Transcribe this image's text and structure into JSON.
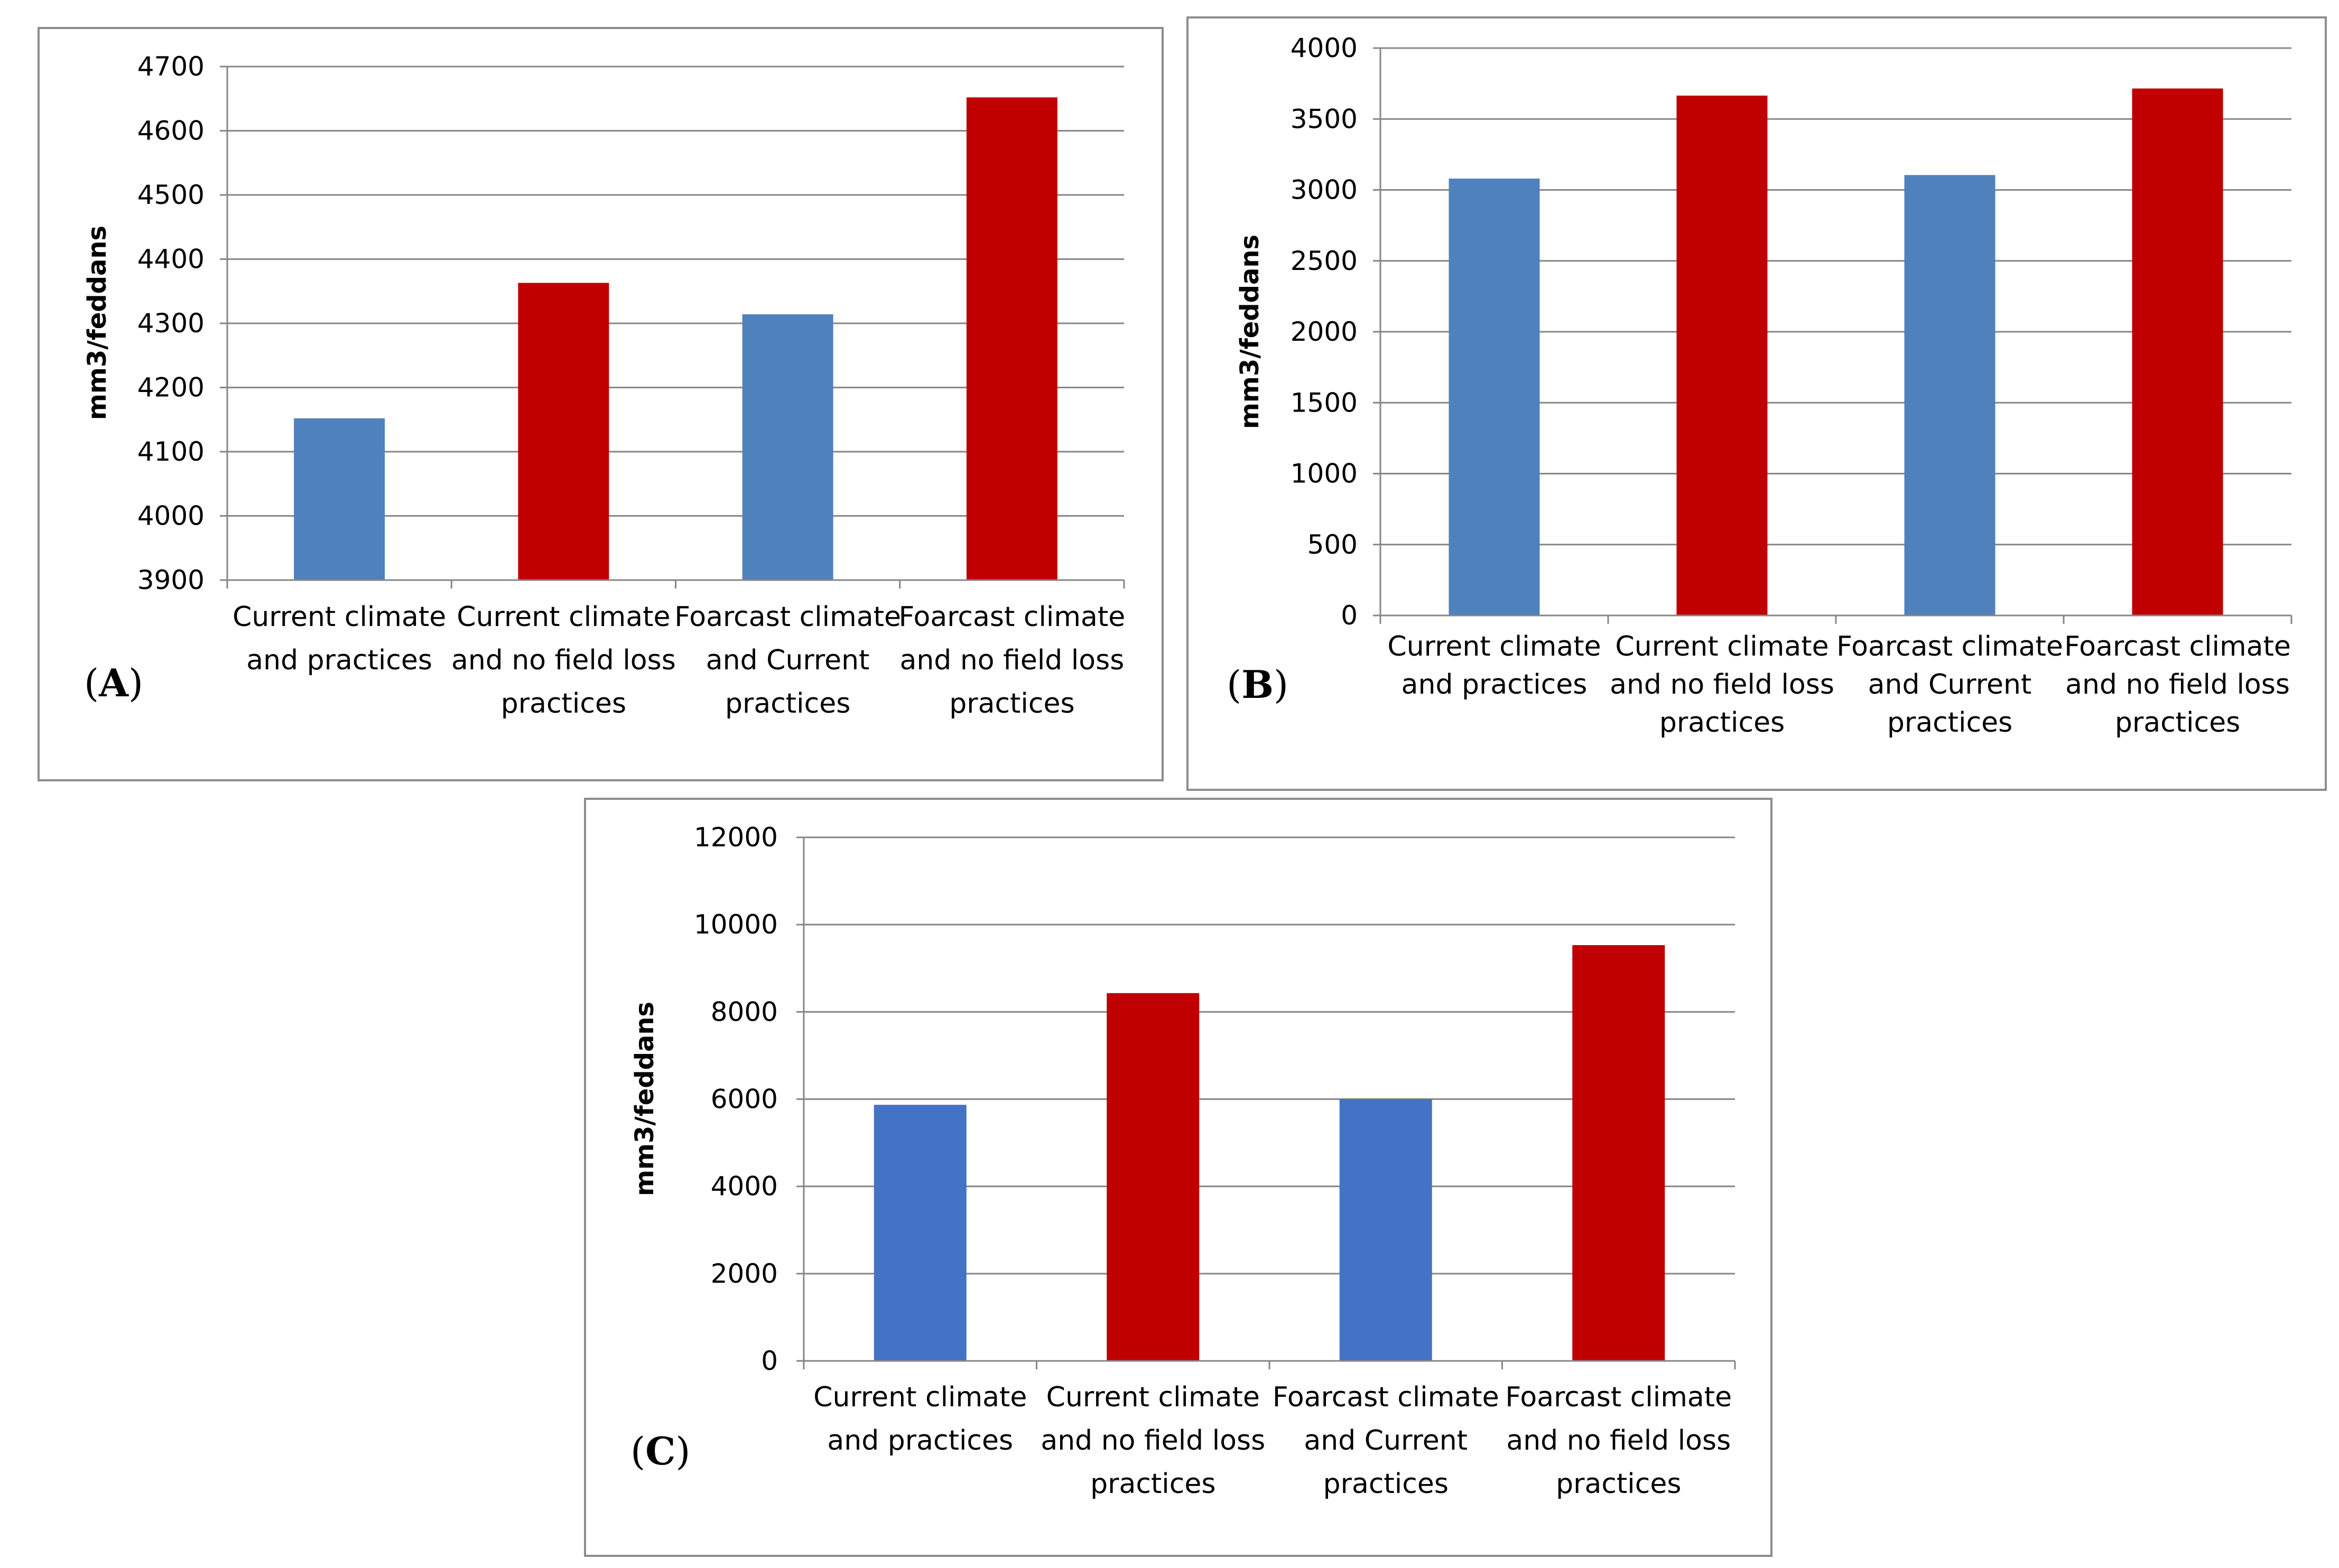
{
  "chart_data": [
    {
      "panel": "A",
      "type": "bar",
      "categories": [
        [
          "Current climate",
          "and  practices"
        ],
        [
          "Current climate",
          "and no field loss",
          "practices"
        ],
        [
          "Foarcast climate",
          "and Current",
          "practices"
        ],
        [
          "Foarcast climate",
          "and no field loss",
          "practices"
        ]
      ],
      "values": [
        4152,
        4363,
        4314,
        4652
      ],
      "colors": [
        "#4f81bd",
        "#c00000",
        "#4f81bd",
        "#c00000"
      ],
      "ylabel": "mm3/feddans",
      "ylim": [
        3900,
        4700
      ],
      "yticks": [
        3900,
        4000,
        4100,
        4200,
        4300,
        4400,
        4500,
        4600,
        4700
      ],
      "grid": true,
      "label": "A"
    },
    {
      "panel": "B",
      "type": "bar",
      "categories": [
        [
          "Current climate",
          "and  practices"
        ],
        [
          "Current climate",
          "and no field loss",
          "practices"
        ],
        [
          "Foarcast climate",
          "and Current",
          "practices"
        ],
        [
          "Foarcast climate",
          "and no field loss",
          "practices"
        ]
      ],
      "values": [
        3080,
        3665,
        3105,
        3715
      ],
      "colors": [
        "#4f81bd",
        "#c00000",
        "#4f81bd",
        "#c00000"
      ],
      "ylabel": "mm3/feddans",
      "ylim": [
        0,
        4000
      ],
      "yticks": [
        0,
        500,
        1000,
        1500,
        2000,
        2500,
        3000,
        3500,
        4000
      ],
      "grid": true,
      "label": "B"
    },
    {
      "panel": "C",
      "type": "bar",
      "categories": [
        [
          "Current climate",
          "and  practices"
        ],
        [
          "Current climate",
          "and no field loss",
          "practices"
        ],
        [
          "Foarcast climate",
          "and Current",
          "practices"
        ],
        [
          "Foarcast climate",
          "and no field loss",
          "practices"
        ]
      ],
      "values": [
        5870,
        8430,
        6000,
        9530
      ],
      "colors": [
        "#4472c4",
        "#c00000",
        "#4472c4",
        "#c00000"
      ],
      "ylabel": "mm3/feddans",
      "ylim": [
        0,
        12000
      ],
      "yticks": [
        0,
        2000,
        4000,
        6000,
        8000,
        10000,
        12000
      ],
      "grid": true,
      "label": "C"
    }
  ],
  "colors": {
    "gridline": "#868686",
    "axis": "#868686",
    "frame": "#8c8c8c"
  }
}
